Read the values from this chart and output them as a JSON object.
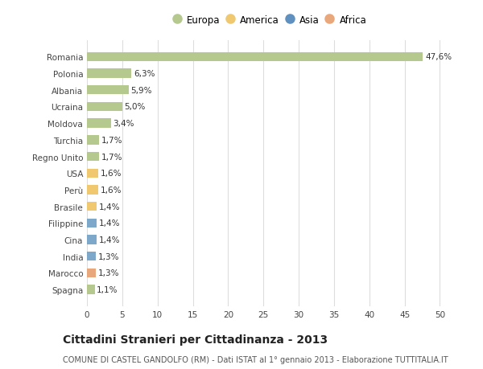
{
  "categories": [
    "Romania",
    "Polonia",
    "Albania",
    "Ucraina",
    "Moldova",
    "Turchia",
    "Regno Unito",
    "USA",
    "Perù",
    "Brasile",
    "Filippine",
    "Cina",
    "India",
    "Marocco",
    "Spagna"
  ],
  "values": [
    47.6,
    6.3,
    5.9,
    5.0,
    3.4,
    1.7,
    1.7,
    1.6,
    1.6,
    1.4,
    1.4,
    1.4,
    1.3,
    1.3,
    1.1
  ],
  "labels": [
    "47,6%",
    "6,3%",
    "5,9%",
    "5,0%",
    "3,4%",
    "1,7%",
    "1,7%",
    "1,6%",
    "1,6%",
    "1,4%",
    "1,4%",
    "1,4%",
    "1,3%",
    "1,3%",
    "1,1%"
  ],
  "continents": [
    "Europa",
    "Europa",
    "Europa",
    "Europa",
    "Europa",
    "Europa",
    "Europa",
    "America",
    "America",
    "America",
    "Asia",
    "Asia",
    "Asia",
    "Africa",
    "Europa"
  ],
  "colors": {
    "Europa": "#b5c98e",
    "America": "#f0c870",
    "Asia": "#7da8c9",
    "Africa": "#e8a87c"
  },
  "legend_colors": {
    "Europa": "#b5c98e",
    "America": "#f0c870",
    "Asia": "#6090c0",
    "Africa": "#e8a87c"
  },
  "xlim": [
    0,
    52
  ],
  "xticks": [
    0,
    5,
    10,
    15,
    20,
    25,
    30,
    35,
    40,
    45,
    50
  ],
  "title": "Cittadini Stranieri per Cittadinanza - 2013",
  "subtitle": "COMUNE DI CASTEL GANDOLFO (RM) - Dati ISTAT al 1° gennaio 2013 - Elaborazione TUTTITALIA.IT",
  "background_color": "#ffffff",
  "grid_color": "#dddddd",
  "bar_height": 0.55,
  "label_fontsize": 7.5,
  "tick_fontsize": 7.5,
  "title_fontsize": 10,
  "subtitle_fontsize": 7,
  "legend_entries": [
    "Europa",
    "America",
    "Asia",
    "Africa"
  ]
}
